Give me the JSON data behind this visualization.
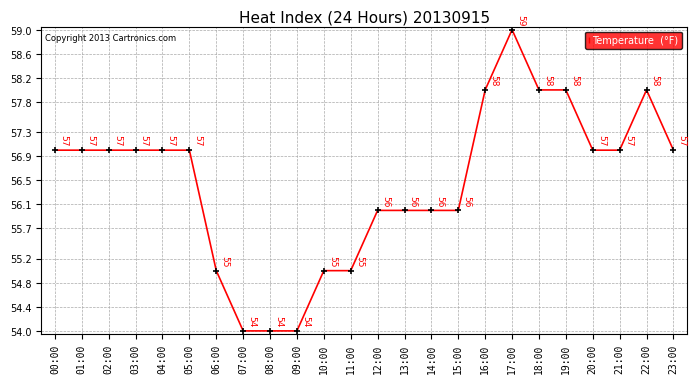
{
  "title": "Heat Index (24 Hours) 20130915",
  "copyright": "Copyright 2013 Cartronics.com",
  "legend_label": "Temperature  (°F)",
  "hours": [
    "00:00",
    "01:00",
    "02:00",
    "03:00",
    "04:00",
    "05:00",
    "06:00",
    "07:00",
    "08:00",
    "09:00",
    "10:00",
    "11:00",
    "12:00",
    "13:00",
    "14:00",
    "15:00",
    "16:00",
    "17:00",
    "18:00",
    "19:00",
    "20:00",
    "21:00",
    "22:00",
    "23:00"
  ],
  "values": [
    57,
    57,
    57,
    57,
    57,
    57,
    55,
    54,
    54,
    54,
    55,
    55,
    56,
    56,
    56,
    56,
    58,
    59,
    58,
    58,
    57,
    57,
    58,
    57
  ],
  "ylim_min": 54.0,
  "ylim_max": 59.0,
  "yticks": [
    54.0,
    54.4,
    54.8,
    55.2,
    55.7,
    56.1,
    56.5,
    56.9,
    57.3,
    57.8,
    58.2,
    58.6,
    59.0
  ],
  "line_color": "red",
  "marker_color": "black",
  "background_color": "white",
  "grid_color": "#aaaaaa",
  "title_fontsize": 11,
  "label_fontsize": 7,
  "annotation_fontsize": 6.5,
  "legend_bg": "red",
  "legend_text_color": "white",
  "fig_width": 6.9,
  "fig_height": 3.75,
  "fig_dpi": 100
}
